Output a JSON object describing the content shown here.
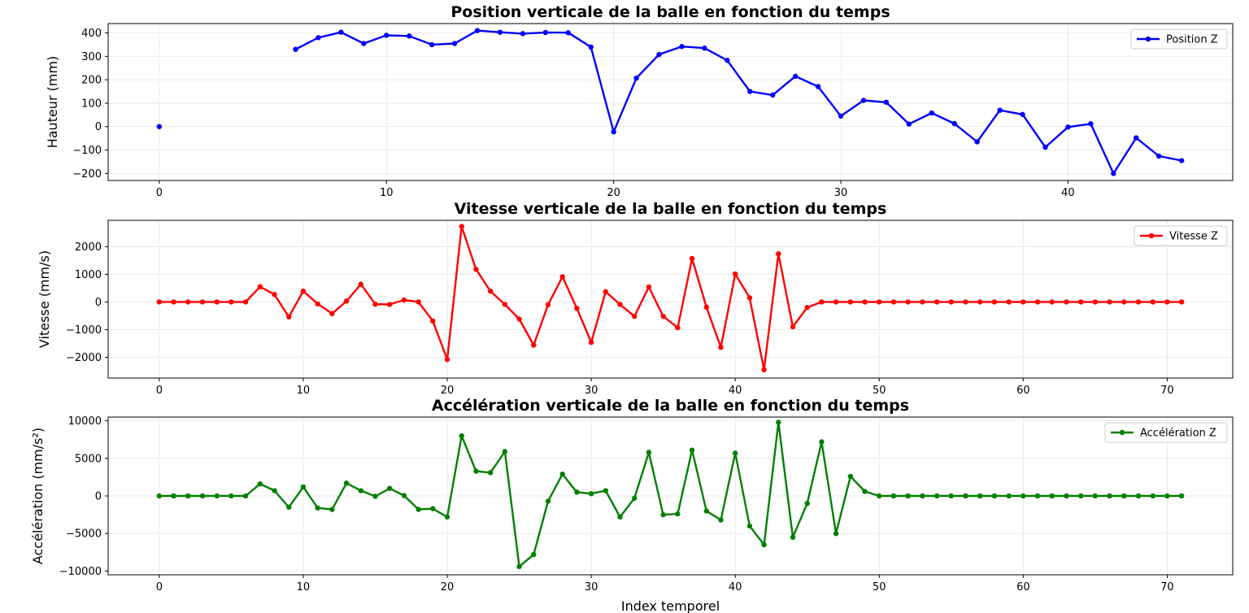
{
  "chart_data": [
    {
      "type": "line",
      "title": "Position verticale de la balle en fonction du temps",
      "xlabel": "",
      "ylabel": "Hauteur (mm)",
      "xlim": [
        -2.25,
        47.25
      ],
      "ylim": [
        -230,
        440
      ],
      "xticks": [
        0,
        10,
        20,
        30,
        40
      ],
      "yticks": [
        -200,
        -100,
        0,
        100,
        200,
        300,
        400
      ],
      "grid": true,
      "legend_position": "top-right",
      "series": [
        {
          "name": "Position Z",
          "color": "#0000ff",
          "segments": [
            {
              "x": [
                0
              ],
              "y": [
                0
              ]
            },
            {
              "x": [
                6,
                7,
                8,
                9,
                10,
                11,
                12,
                13,
                14,
                15,
                16,
                17,
                18,
                19,
                20,
                21,
                22,
                23,
                24,
                25,
                26,
                27,
                28,
                29,
                30,
                31,
                32,
                33,
                34,
                35,
                36,
                37,
                38,
                39,
                40,
                41,
                42,
                43,
                44,
                45
              ],
              "y": [
                330,
                380,
                403,
                355,
                390,
                387,
                350,
                355,
                410,
                403,
                397,
                402,
                401,
                340,
                -22,
                207,
                308,
                342,
                335,
                283,
                150,
                135,
                215,
                171,
                45,
                112,
                104,
                11,
                58,
                13,
                -65,
                70,
                52,
                -88,
                -2,
                12,
                -200,
                -48,
                -126,
                -145
              ]
            }
          ]
        }
      ]
    },
    {
      "type": "line",
      "title": "Vitesse verticale de la balle en fonction du temps",
      "xlabel": "",
      "ylabel": "Vitesse (mm/s)",
      "xlim": [
        -3.55,
        74.55
      ],
      "ylim": [
        -2750,
        2950
      ],
      "xticks": [
        0,
        10,
        20,
        30,
        40,
        50,
        60,
        70
      ],
      "yticks": [
        -2000,
        -1000,
        0,
        1000,
        2000
      ],
      "grid": true,
      "legend_position": "top-right",
      "series": [
        {
          "name": "Vitesse Z",
          "color": "#ff0000",
          "x": [
            0,
            1,
            2,
            3,
            4,
            5,
            6,
            7,
            8,
            9,
            10,
            11,
            12,
            13,
            14,
            15,
            16,
            17,
            18,
            19,
            20,
            21,
            22,
            23,
            24,
            25,
            26,
            27,
            28,
            29,
            30,
            31,
            32,
            33,
            34,
            35,
            36,
            37,
            38,
            39,
            40,
            41,
            42,
            43,
            44,
            45,
            46,
            47,
            48,
            49,
            50,
            51,
            52,
            53,
            54,
            55,
            56,
            57,
            58,
            59,
            60,
            61,
            62,
            63,
            64,
            65,
            66,
            67,
            68,
            69,
            70,
            71
          ],
          "y": [
            0,
            0,
            0,
            0,
            0,
            0,
            0,
            550,
            270,
            -540,
            390,
            -70,
            -420,
            30,
            640,
            -80,
            -90,
            70,
            0,
            -690,
            -2080,
            2730,
            1180,
            390,
            -90,
            -620,
            -1560,
            -100,
            910,
            -230,
            -1460,
            370,
            -90,
            -520,
            540,
            -520,
            -930,
            1570,
            -190,
            -1640,
            1010,
            150,
            -2450,
            1740,
            -900,
            -200,
            0,
            0,
            0,
            0,
            0,
            0,
            0,
            0,
            0,
            0,
            0,
            0,
            0,
            0,
            0,
            0,
            0,
            0,
            0,
            0,
            0,
            0,
            0,
            0,
            0,
            0
          ]
        }
      ]
    },
    {
      "type": "line",
      "title": "Accélération verticale de la balle en fonction du temps",
      "xlabel": "Index temporel",
      "ylabel": "Accélération (mm/s²)",
      "xlim": [
        -3.55,
        74.55
      ],
      "ylim": [
        -10500,
        10500
      ],
      "xticks": [
        0,
        10,
        20,
        30,
        40,
        50,
        60,
        70
      ],
      "yticks": [
        -10000,
        -5000,
        0,
        5000,
        10000
      ],
      "grid": true,
      "legend_position": "top-right",
      "series": [
        {
          "name": "Accélération Z",
          "color": "#008000",
          "x": [
            0,
            1,
            2,
            3,
            4,
            5,
            6,
            7,
            8,
            9,
            10,
            11,
            12,
            13,
            14,
            15,
            16,
            17,
            18,
            19,
            20,
            21,
            22,
            23,
            24,
            25,
            26,
            27,
            28,
            29,
            30,
            31,
            32,
            33,
            34,
            35,
            36,
            37,
            38,
            39,
            40,
            41,
            42,
            43,
            44,
            45,
            46,
            47,
            48,
            49,
            50,
            51,
            52,
            53,
            54,
            55,
            56,
            57,
            58,
            59,
            60,
            61,
            62,
            63,
            64,
            65,
            66,
            67,
            68,
            69,
            70,
            71
          ],
          "y": [
            0,
            0,
            0,
            0,
            0,
            0,
            0,
            1600,
            700,
            -1500,
            1200,
            -1600,
            -1800,
            1700,
            700,
            -50,
            1000,
            50,
            -1800,
            -1700,
            -2800,
            8000,
            3300,
            3100,
            5900,
            -9400,
            -7800,
            -700,
            2900,
            500,
            300,
            700,
            -2800,
            -300,
            5800,
            -2500,
            -2400,
            6100,
            -2000,
            -3200,
            5700,
            -4000,
            -6500,
            9800,
            -5500,
            -1000,
            7200,
            -5000,
            2600,
            600,
            0,
            0,
            0,
            0,
            0,
            0,
            0,
            0,
            0,
            0,
            0,
            0,
            0,
            0,
            0,
            0,
            0,
            0,
            0,
            0,
            0,
            0
          ]
        }
      ]
    }
  ]
}
